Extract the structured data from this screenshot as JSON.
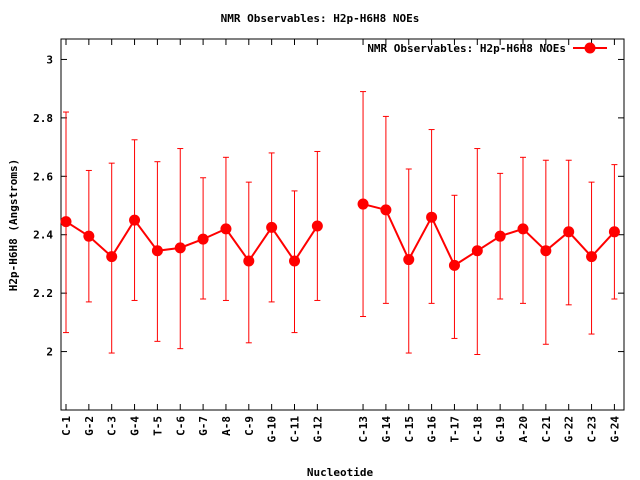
{
  "chart_data": {
    "type": "line",
    "title": "NMR Observables: H2p-H6H8 NOEs",
    "xlabel": "Nucleotide",
    "ylabel": "H2p-H6H8 (Angstroms)",
    "ylim": [
      1.8,
      3.07
    ],
    "yticks": [
      2,
      2.2,
      2.4,
      2.6,
      2.8,
      3
    ],
    "ytick_labels": [
      "2",
      "2.2",
      "2.4",
      "2.6",
      "2.8",
      "3"
    ],
    "grid": false,
    "legend_position": "top-right",
    "color": "#ff0000",
    "categories": [
      "C-1",
      "G-2",
      "C-3",
      "G-4",
      "T-5",
      "C-6",
      "G-7",
      "A-8",
      "C-9",
      "G-10",
      "C-11",
      "G-12",
      "C-13",
      "G-14",
      "C-15",
      "G-16",
      "T-17",
      "C-18",
      "G-19",
      "A-20",
      "C-21",
      "G-22",
      "C-23",
      "G-24"
    ],
    "x": [
      1,
      2,
      3,
      4,
      5,
      6,
      7,
      8,
      9,
      10,
      11,
      12,
      14,
      15,
      16,
      17,
      18,
      19,
      20,
      21,
      22,
      23,
      24,
      25
    ],
    "series": [
      {
        "name": "NMR Observables: H2p-H6H8 NOEs",
        "values": [
          2.445,
          2.395,
          2.325,
          2.45,
          2.345,
          2.355,
          2.385,
          2.42,
          2.31,
          2.425,
          2.31,
          2.43,
          2.505,
          2.485,
          2.315,
          2.46,
          2.295,
          2.345,
          2.395,
          2.42,
          2.345,
          2.41,
          2.325,
          2.41
        ],
        "lower": [
          2.065,
          2.17,
          1.995,
          2.175,
          2.035,
          2.01,
          2.18,
          2.175,
          2.03,
          2.17,
          2.065,
          2.175,
          2.12,
          2.165,
          1.995,
          2.165,
          2.045,
          1.99,
          2.18,
          2.165,
          2.025,
          2.16,
          2.06,
          2.18
        ],
        "upper": [
          2.82,
          2.62,
          2.645,
          2.725,
          2.65,
          2.695,
          2.595,
          2.665,
          2.58,
          2.68,
          2.55,
          2.685,
          2.89,
          2.805,
          2.625,
          2.76,
          2.535,
          2.695,
          2.61,
          2.665,
          2.655,
          2.655,
          2.58,
          2.64
        ],
        "segments": [
          [
            0,
            11
          ],
          [
            12,
            23
          ]
        ]
      }
    ]
  }
}
